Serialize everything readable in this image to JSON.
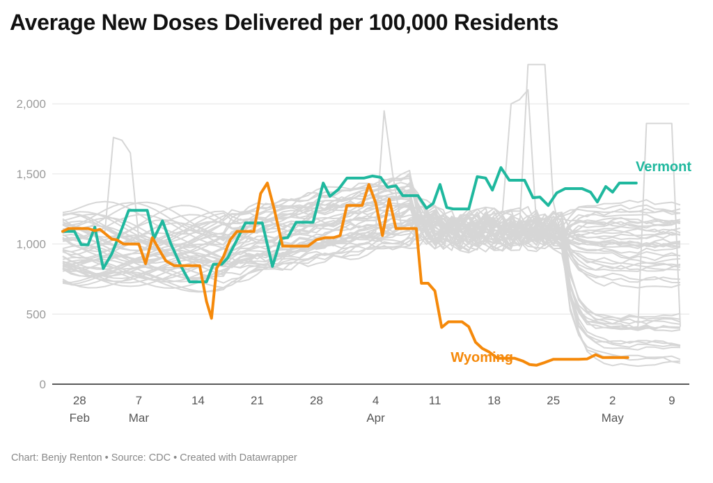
{
  "title": "Average New Doses Delivered per 100,000 Residents",
  "footer": "Chart: Benjy Renton • Source: CDC • Created with Datawrapper",
  "chart_data": {
    "type": "line",
    "x_unit": "days since Feb 26",
    "ylim": [
      0,
      2300
    ],
    "y_ticks": [
      0,
      500,
      1000,
      1500,
      2000
    ],
    "y_tick_labels": [
      "0",
      "500",
      "1,000",
      "1,500",
      "2,000"
    ],
    "x_ticks": [
      {
        "x": 2,
        "day": "28",
        "month": "Feb"
      },
      {
        "x": 9,
        "day": "7",
        "month": "Mar"
      },
      {
        "x": 16,
        "day": "14",
        "month": ""
      },
      {
        "x": 23,
        "day": "21",
        "month": ""
      },
      {
        "x": 30,
        "day": "28",
        "month": ""
      },
      {
        "x": 37,
        "day": "4",
        "month": "Apr"
      },
      {
        "x": 44,
        "day": "11",
        "month": ""
      },
      {
        "x": 51,
        "day": "18",
        "month": ""
      },
      {
        "x": 58,
        "day": "25",
        "month": ""
      },
      {
        "x": 65,
        "day": "2",
        "month": "May"
      },
      {
        "x": 72,
        "day": "9",
        "month": ""
      }
    ],
    "grid": true,
    "background_series_color": "#d6d6d6",
    "background_series_count": 48,
    "highlighted_series": [
      {
        "name": "Vermont",
        "color": "#1fb89e",
        "points": [
          [
            0,
            1090
          ],
          [
            0.7,
            1090
          ],
          [
            1.4,
            1090
          ],
          [
            2.2,
            995
          ],
          [
            3,
            995
          ],
          [
            3.8,
            1120
          ],
          [
            4.8,
            825
          ],
          [
            5.8,
            930
          ],
          [
            7,
            1110
          ],
          [
            7.8,
            1240
          ],
          [
            9,
            1240
          ],
          [
            10,
            1240
          ],
          [
            10.8,
            1040
          ],
          [
            11.8,
            1165
          ],
          [
            12.8,
            1000
          ],
          [
            14,
            840
          ],
          [
            15,
            730
          ],
          [
            16,
            730
          ],
          [
            17,
            730
          ],
          [
            17.8,
            855
          ],
          [
            18.8,
            855
          ],
          [
            19.5,
            900
          ],
          [
            20.6,
            1030
          ],
          [
            21.6,
            1150
          ],
          [
            22.6,
            1150
          ],
          [
            23.6,
            1150
          ],
          [
            24.8,
            840
          ],
          [
            25.8,
            1040
          ],
          [
            26.6,
            1045
          ],
          [
            27.6,
            1155
          ],
          [
            28.6,
            1155
          ],
          [
            29.6,
            1155
          ],
          [
            30.8,
            1435
          ],
          [
            31.6,
            1340
          ],
          [
            32.6,
            1390
          ],
          [
            33.6,
            1470
          ],
          [
            34.6,
            1470
          ],
          [
            35.6,
            1470
          ],
          [
            36.6,
            1485
          ],
          [
            37.6,
            1475
          ],
          [
            38.4,
            1405
          ],
          [
            39.4,
            1415
          ],
          [
            40.2,
            1345
          ],
          [
            41,
            1345
          ],
          [
            42,
            1345
          ],
          [
            43,
            1255
          ],
          [
            43.8,
            1290
          ],
          [
            44.6,
            1425
          ],
          [
            45.4,
            1260
          ],
          [
            46.2,
            1250
          ],
          [
            47.2,
            1250
          ],
          [
            48,
            1250
          ],
          [
            49,
            1480
          ],
          [
            50,
            1470
          ],
          [
            50.8,
            1385
          ],
          [
            51.8,
            1545
          ],
          [
            52.8,
            1455
          ],
          [
            53.8,
            1455
          ],
          [
            54.6,
            1455
          ],
          [
            55.6,
            1330
          ],
          [
            56.4,
            1335
          ],
          [
            57.4,
            1275
          ],
          [
            58.4,
            1365
          ],
          [
            59.4,
            1395
          ],
          [
            60.4,
            1395
          ],
          [
            61.4,
            1395
          ],
          [
            62.4,
            1370
          ],
          [
            63.2,
            1300
          ],
          [
            64.2,
            1410
          ],
          [
            65,
            1370
          ],
          [
            65.8,
            1435
          ],
          [
            66.8,
            1435
          ],
          [
            67.8,
            1435
          ]
        ]
      },
      {
        "name": "Wyoming",
        "color": "#f5890a",
        "points": [
          [
            0,
            1090
          ],
          [
            0.7,
            1110
          ],
          [
            1.4,
            1110
          ],
          [
            2.2,
            1110
          ],
          [
            3,
            1110
          ],
          [
            3.8,
            1095
          ],
          [
            4.4,
            1105
          ],
          [
            5.8,
            1035
          ],
          [
            6.4,
            1030
          ],
          [
            7.2,
            1000
          ],
          [
            8.2,
            1000
          ],
          [
            9,
            1000
          ],
          [
            9.8,
            860
          ],
          [
            10.6,
            1045
          ],
          [
            11.4,
            960
          ],
          [
            12.2,
            880
          ],
          [
            13.2,
            845
          ],
          [
            14.2,
            845
          ],
          [
            15.2,
            845
          ],
          [
            16.2,
            845
          ],
          [
            17,
            590
          ],
          [
            17.6,
            470
          ],
          [
            18.2,
            825
          ],
          [
            19,
            910
          ],
          [
            19.8,
            1030
          ],
          [
            20.6,
            1090
          ],
          [
            21.6,
            1090
          ],
          [
            22.6,
            1090
          ],
          [
            23.4,
            1360
          ],
          [
            24.2,
            1435
          ],
          [
            25,
            1250
          ],
          [
            26,
            985
          ],
          [
            27,
            985
          ],
          [
            28,
            985
          ],
          [
            29,
            985
          ],
          [
            30,
            1030
          ],
          [
            31,
            1045
          ],
          [
            32,
            1045
          ],
          [
            32.8,
            1060
          ],
          [
            33.6,
            1275
          ],
          [
            34.6,
            1275
          ],
          [
            35.4,
            1275
          ],
          [
            36.2,
            1425
          ],
          [
            37,
            1295
          ],
          [
            37.8,
            1060
          ],
          [
            38.6,
            1320
          ],
          [
            39.4,
            1110
          ],
          [
            40.2,
            1110
          ],
          [
            41,
            1110
          ],
          [
            41.8,
            1110
          ],
          [
            42.4,
            720
          ],
          [
            43.2,
            720
          ],
          [
            44,
            665
          ],
          [
            44.8,
            405
          ],
          [
            45.6,
            445
          ],
          [
            46.4,
            445
          ],
          [
            47.2,
            445
          ],
          [
            48,
            410
          ],
          [
            48.8,
            300
          ],
          [
            49.6,
            255
          ],
          [
            50.4,
            230
          ],
          [
            51.4,
            185
          ],
          [
            52.4,
            185
          ],
          [
            53.4,
            185
          ],
          [
            54.4,
            165
          ],
          [
            55.2,
            140
          ],
          [
            56,
            135
          ],
          [
            57,
            155
          ],
          [
            58,
            178
          ],
          [
            59,
            178
          ],
          [
            60,
            178
          ],
          [
            61,
            178
          ],
          [
            62,
            180
          ],
          [
            63,
            210
          ],
          [
            63.8,
            190
          ],
          [
            64.8,
            190
          ],
          [
            65.8,
            190
          ],
          [
            66.8,
            190
          ]
        ]
      }
    ]
  }
}
